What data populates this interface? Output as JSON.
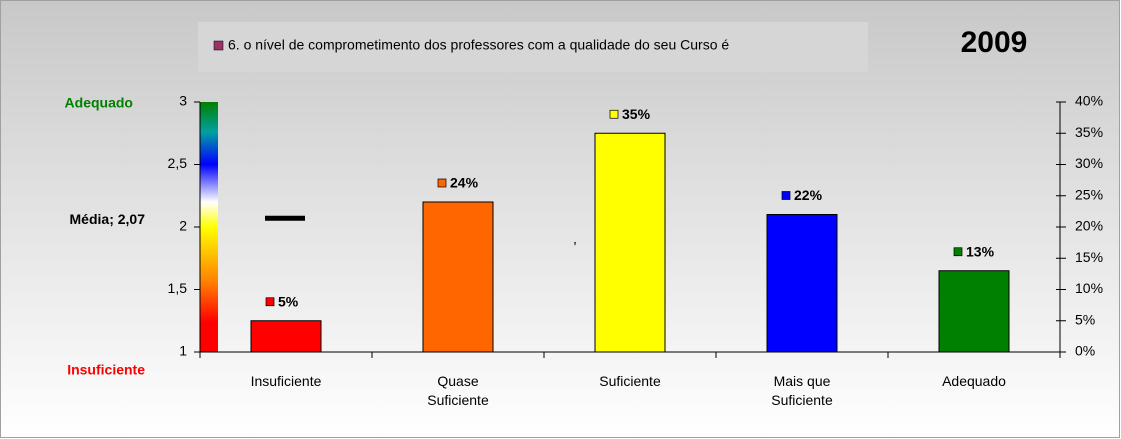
{
  "chart_data": {
    "type": "bar",
    "title": "2009",
    "categories": [
      "Insuficiente",
      "Quase Suficiente",
      "Suficiente",
      "Mais que Suficiente",
      "Adequado"
    ],
    "series": [
      {
        "name": "6. o nível de comprometimento dos professores com a qualidade do seu Curso é",
        "color": "#993366",
        "bar_colors": [
          "#ff0000",
          "#ff6600",
          "#ffff00",
          "#0000ff",
          "#008000"
        ],
        "values": [
          5,
          24,
          35,
          22,
          13
        ],
        "value_labels": [
          "5%",
          "24%",
          "35%",
          "22%",
          "13%"
        ],
        "axis": "y2"
      }
    ],
    "ylim": [
      1,
      3
    ],
    "yticks": [
      1,
      {
        "value": 1.5,
        "label": "1,5"
      },
      2,
      {
        "value": 2.5,
        "label": "2,5"
      },
      3
    ],
    "y2lim": [
      0,
      40
    ],
    "y2ticks": [
      {
        "value": 0,
        "label": "0%"
      },
      {
        "value": 5,
        "label": "5%"
      },
      {
        "value": 10,
        "label": "10%"
      },
      {
        "value": 15,
        "label": "15%"
      },
      {
        "value": 20,
        "label": "20%"
      },
      {
        "value": 25,
        "label": "25%"
      },
      {
        "value": 30,
        "label": "30%"
      },
      {
        "value": 35,
        "label": "35%"
      },
      {
        "value": 40,
        "label": "40%"
      }
    ],
    "mean": {
      "label": "Média; 2,07",
      "value": 2.07
    },
    "scale_top_label": "Adequado",
    "scale_bottom_label": "Insuficiente",
    "annotation": ","
  }
}
